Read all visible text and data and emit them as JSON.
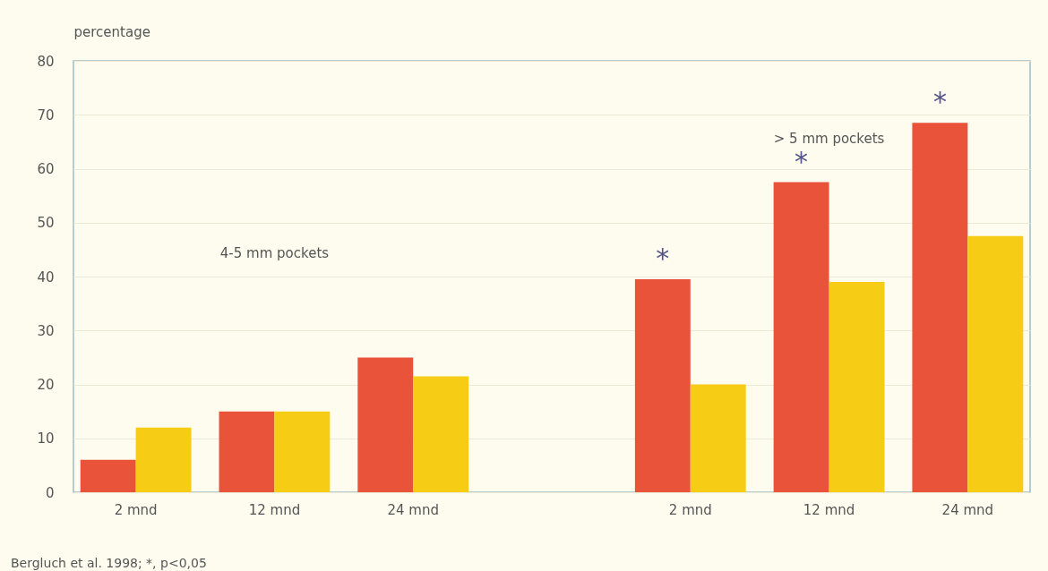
{
  "chart_data": {
    "type": "bar",
    "ylabel": "percentage",
    "categories": [
      "2 mnd",
      "12 mnd",
      "24 mnd",
      null,
      "2 mnd",
      "12 mnd",
      "24 mnd"
    ],
    "series": [
      {
        "color": "#e8533a",
        "values": [
          6,
          15,
          25,
          null,
          39.5,
          57.5,
          68.5
        ],
        "value_labels": [
          null,
          null,
          null,
          null,
          "*",
          "*",
          "*"
        ]
      },
      {
        "color": "#f6cd14",
        "values": [
          12,
          15,
          21.5,
          null,
          20,
          39,
          47.5
        ]
      }
    ],
    "ylim": [
      0,
      80
    ],
    "yticks": [
      0,
      10,
      20,
      30,
      40,
      50,
      60,
      70,
      80
    ],
    "grid": "y",
    "legend": false,
    "annotations": [
      "4-5 mm pockets",
      "> 5 mm pockets",
      "Bergluch et al. 1998; *, p<0,05"
    ]
  }
}
